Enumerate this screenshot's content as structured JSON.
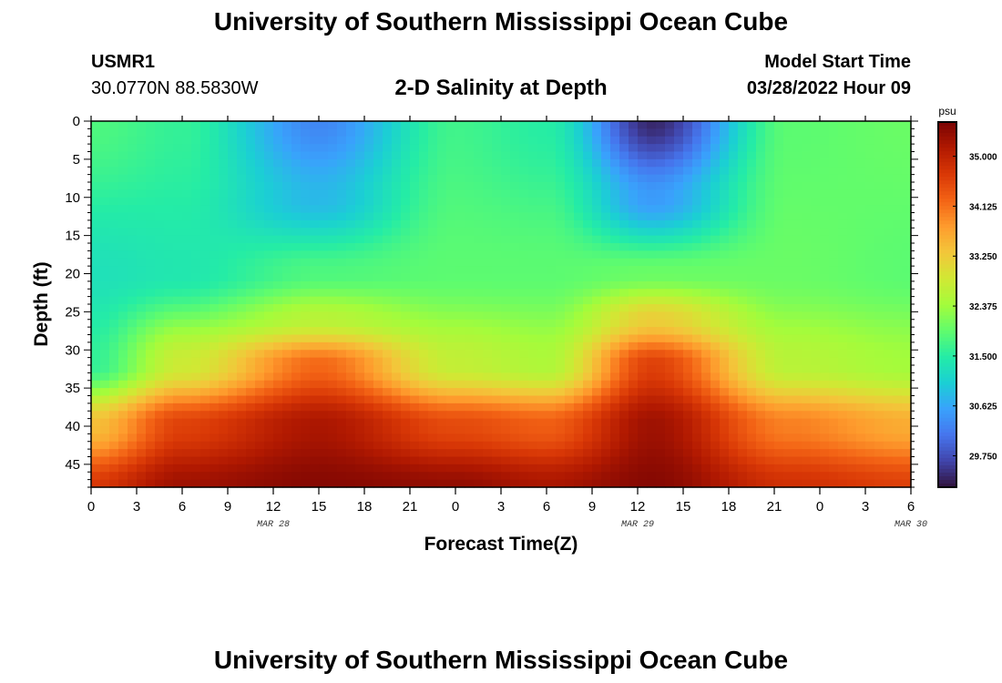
{
  "header": {
    "title": "University of Southern Mississippi Ocean Cube",
    "station_id": "USMR1",
    "coords": "30.0770N  88.5830W",
    "plot_title": "2-D Salinity at Depth",
    "model_start_label": "Model Start Time",
    "model_start_value": "03/28/2022 Hour 09"
  },
  "footer": {
    "title": "University of Southern Mississippi Ocean Cube"
  },
  "chart_data": {
    "type": "heatmap",
    "title": "2-D Salinity at Depth",
    "xlabel": "Forecast Time(Z)",
    "ylabel": "Depth (ft)",
    "x_tick_labels": [
      "0",
      "3",
      "6",
      "9",
      "12",
      "15",
      "18",
      "21",
      "0",
      "3",
      "6",
      "9",
      "12",
      "15",
      "18",
      "21",
      "0",
      "3",
      "6"
    ],
    "x_date_labels": [
      {
        "label": "MAR 28",
        "at_hour": 12
      },
      {
        "label": "MAR 29",
        "at_hour": 36
      },
      {
        "label": "MAR 30",
        "at_hour": 54
      }
    ],
    "xlim_hours": [
      0,
      54
    ],
    "y_ticks": [
      0,
      5,
      10,
      15,
      20,
      25,
      30,
      35,
      40,
      45
    ],
    "ylim": [
      0,
      48
    ],
    "y_inverted": true,
    "colorbar": {
      "unit": "psu",
      "ticks": [
        "35.000",
        "34.125",
        "33.250",
        "32.375",
        "31.500",
        "30.625",
        "29.750"
      ],
      "min": 29.2,
      "max": 35.6
    },
    "colormap": [
      "#30123b",
      "#4145ab",
      "#4675ed",
      "#39a2fc",
      "#1bcfd4",
      "#24eca6",
      "#61fc6c",
      "#a4fc3b",
      "#d1e834",
      "#f3c63a",
      "#fe9b2d",
      "#f36315",
      "#d93806",
      "#b11901",
      "#7a0403"
    ],
    "surface_low_centers": [
      {
        "hour": 15.5,
        "depth": 3,
        "value": 30.3
      },
      {
        "hour": 38.5,
        "depth": 3,
        "value": 29.4
      }
    ],
    "depth_profile": [
      {
        "hour": 0,
        "values": [
          {
            "depth": 0,
            "value": 31.8
          },
          {
            "depth": 20,
            "value": 31.3
          },
          {
            "depth": 32,
            "value": 31.6
          },
          {
            "depth": 40,
            "value": 33.4
          },
          {
            "depth": 48,
            "value": 34.7
          }
        ]
      },
      {
        "hour": 6,
        "values": [
          {
            "depth": 0,
            "value": 31.6
          },
          {
            "depth": 20,
            "value": 31.4
          },
          {
            "depth": 32,
            "value": 32.8
          },
          {
            "depth": 40,
            "value": 34.6
          },
          {
            "depth": 48,
            "value": 35.3
          }
        ]
      },
      {
        "hour": 15,
        "values": [
          {
            "depth": 0,
            "value": 30.3
          },
          {
            "depth": 10,
            "value": 30.8
          },
          {
            "depth": 20,
            "value": 31.8
          },
          {
            "depth": 26,
            "value": 32.6
          },
          {
            "depth": 32,
            "value": 34.2
          },
          {
            "depth": 40,
            "value": 35.2
          },
          {
            "depth": 48,
            "value": 35.5
          }
        ]
      },
      {
        "hour": 24,
        "values": [
          {
            "depth": 0,
            "value": 31.7
          },
          {
            "depth": 20,
            "value": 31.9
          },
          {
            "depth": 32,
            "value": 32.7
          },
          {
            "depth": 40,
            "value": 34.5
          },
          {
            "depth": 48,
            "value": 35.4
          }
        ]
      },
      {
        "hour": 30,
        "values": [
          {
            "depth": 0,
            "value": 31.5
          },
          {
            "depth": 20,
            "value": 31.9
          },
          {
            "depth": 32,
            "value": 32.5
          },
          {
            "depth": 40,
            "value": 34.3
          },
          {
            "depth": 48,
            "value": 35.2
          }
        ]
      },
      {
        "hour": 37,
        "values": [
          {
            "depth": 0,
            "value": 29.4
          },
          {
            "depth": 10,
            "value": 30.5
          },
          {
            "depth": 20,
            "value": 32.0
          },
          {
            "depth": 26,
            "value": 33.2
          },
          {
            "depth": 32,
            "value": 34.6
          },
          {
            "depth": 40,
            "value": 35.3
          },
          {
            "depth": 48,
            "value": 35.5
          }
        ]
      },
      {
        "hour": 46,
        "values": [
          {
            "depth": 0,
            "value": 31.9
          },
          {
            "depth": 20,
            "value": 32.0
          },
          {
            "depth": 32,
            "value": 32.6
          },
          {
            "depth": 40,
            "value": 34.0
          },
          {
            "depth": 48,
            "value": 34.8
          }
        ]
      },
      {
        "hour": 54,
        "values": [
          {
            "depth": 0,
            "value": 32.0
          },
          {
            "depth": 20,
            "value": 31.9
          },
          {
            "depth": 32,
            "value": 32.4
          },
          {
            "depth": 40,
            "value": 33.6
          },
          {
            "depth": 48,
            "value": 34.6
          }
        ]
      }
    ]
  }
}
